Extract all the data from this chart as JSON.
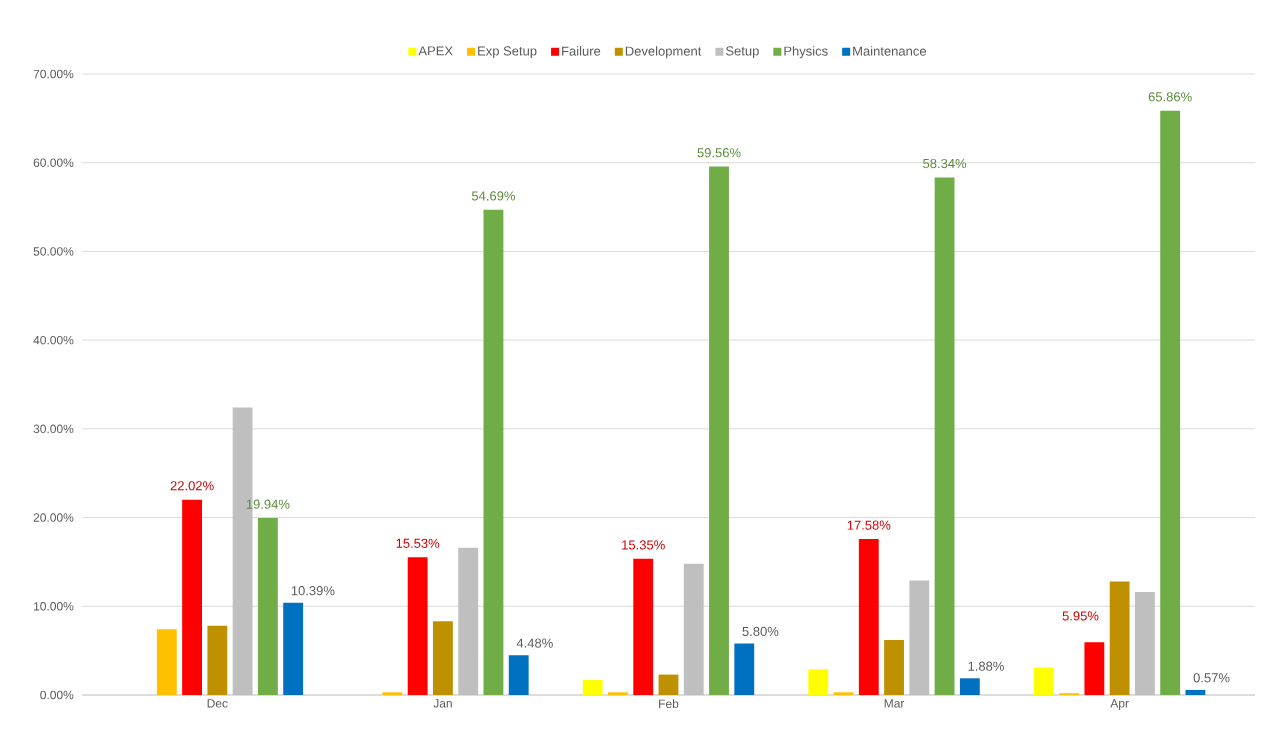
{
  "chart_data": {
    "type": "bar",
    "categories": [
      "Dec",
      "Jan",
      "Feb",
      "Mar",
      "Apr"
    ],
    "series": [
      {
        "name": "APEX",
        "color": "#ffff00",
        "values": [
          0,
          0,
          1.7,
          2.9,
          3.1
        ]
      },
      {
        "name": "Exp Setup",
        "color": "#ffc000",
        "values": [
          7.4,
          0.3,
          0.3,
          0.3,
          0.2
        ]
      },
      {
        "name": "Failure",
        "color": "#ff0000",
        "values": [
          22.02,
          15.53,
          15.35,
          17.58,
          5.95
        ],
        "value_labels": [
          "22.02%",
          "15.53%",
          "15.35%",
          "17.58%",
          "5.95%"
        ]
      },
      {
        "name": "Development",
        "color": "#bf9000",
        "values": [
          7.8,
          8.3,
          2.3,
          6.2,
          12.8
        ]
      },
      {
        "name": "Setup",
        "color": "#bfbfbf",
        "values": [
          32.4,
          16.6,
          14.8,
          12.9,
          11.6
        ]
      },
      {
        "name": "Physics",
        "color": "#70ad47",
        "values": [
          19.94,
          54.69,
          59.56,
          58.34,
          65.86
        ],
        "value_labels": [
          "19.94%",
          "54.69%",
          "59.56%",
          "58.34%",
          "65.86%"
        ]
      },
      {
        "name": "Maintenance",
        "color": "#0070c0",
        "values": [
          10.39,
          4.48,
          5.8,
          1.88,
          0.57
        ],
        "value_labels": [
          "10.39%",
          "4.48%",
          "5.80%",
          "1.88%",
          "0.57%"
        ]
      }
    ],
    "ylim": [
      0,
      70
    ],
    "yticks": [
      {
        "value": 0,
        "label": "0.00%"
      },
      {
        "value": 10,
        "label": "10.00%"
      },
      {
        "value": 20,
        "label": "20.00%"
      },
      {
        "value": 30,
        "label": "30.00%"
      },
      {
        "value": 40,
        "label": "40.00%"
      },
      {
        "value": 50,
        "label": "50.00%"
      },
      {
        "value": 60,
        "label": "60.00%"
      },
      {
        "value": 70,
        "label": "70.00%"
      }
    ],
    "grid": "y",
    "legend": "top"
  }
}
